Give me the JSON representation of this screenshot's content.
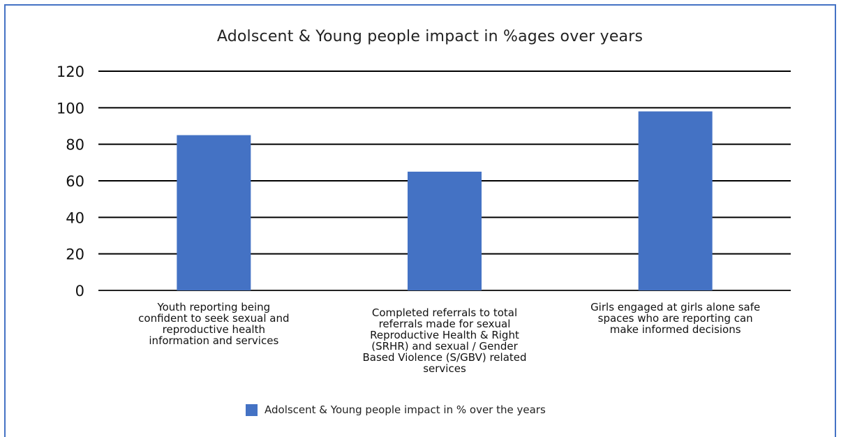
{
  "chart_data": {
    "type": "bar",
    "title": "Adolscent & Young people impact in %ages over years",
    "categories": [
      [
        "Youth reporting being",
        "confident to seek sexual and",
        "reproductive health",
        "information and services"
      ],
      [
        "Completed referrals to total",
        "referrals made for sexual",
        "Reproductive Health & Right",
        "(SRHR) and sexual / Gender",
        "Based Violence (S/GBV) related",
        "services"
      ],
      [
        "Girls engaged at girls alone safe",
        "spaces who are reporting can",
        "make informed decisions"
      ]
    ],
    "series": [
      {
        "name": "Adolscent & Young people impact in % over the years",
        "values": [
          85,
          65,
          98
        ],
        "color": "#4472c4"
      }
    ],
    "ylim": [
      0,
      120
    ],
    "yticks": [
      "0",
      "20",
      "40",
      "60",
      "80",
      "100",
      "120"
    ],
    "grid": true,
    "legend_position": "bottom"
  }
}
